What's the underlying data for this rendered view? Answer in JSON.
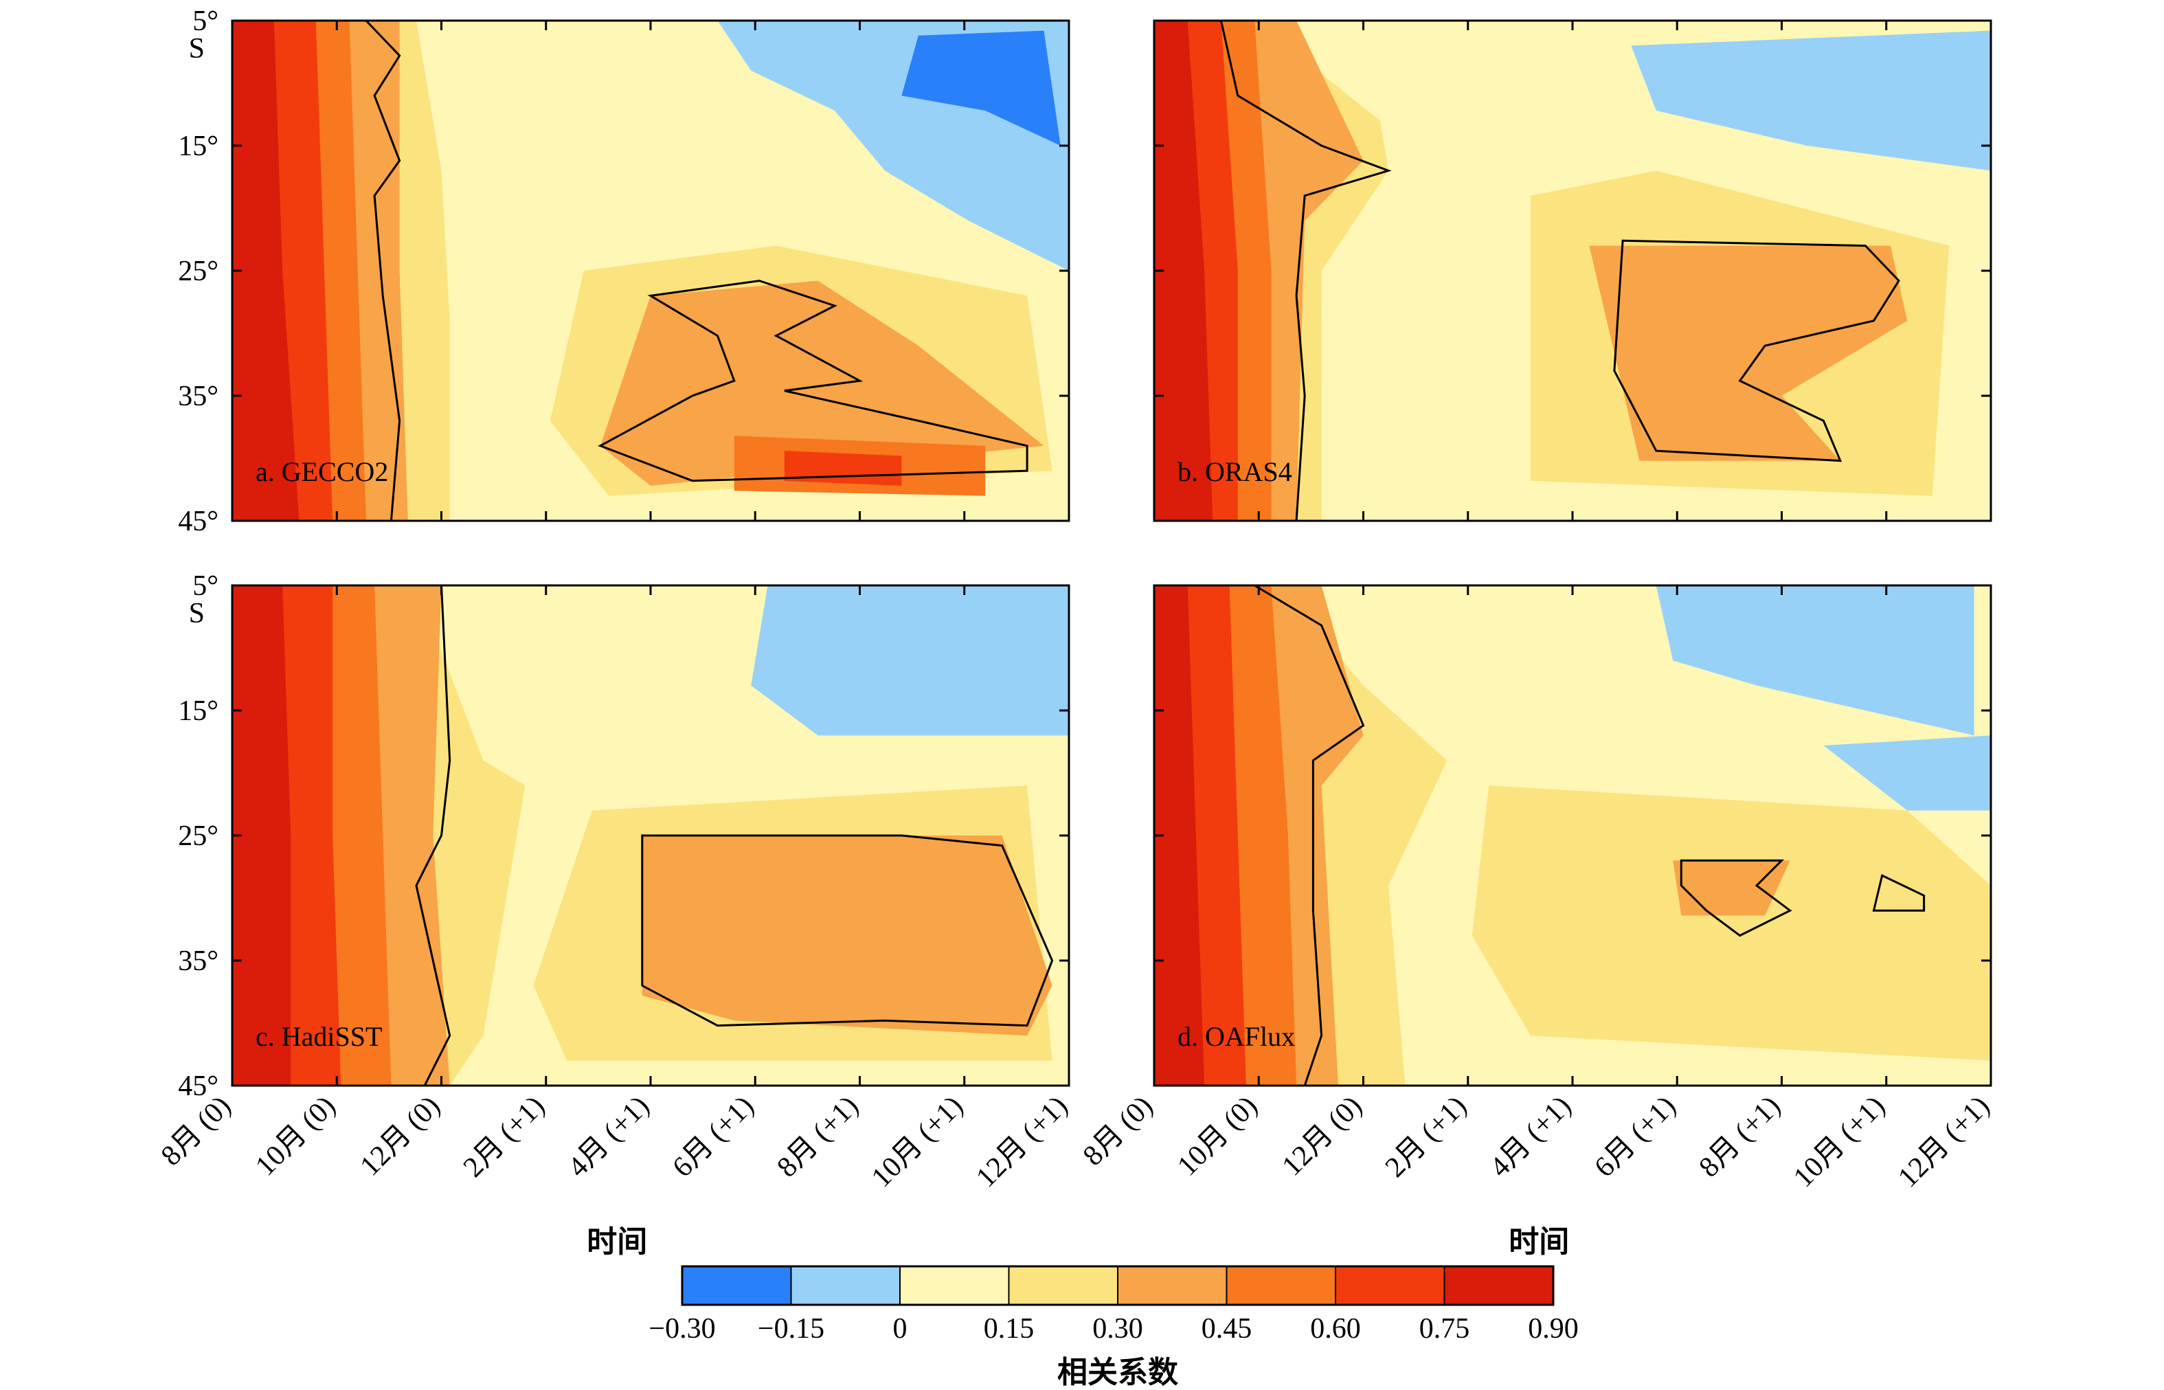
{
  "chart_data": {
    "type": "heatmap",
    "panels": [
      {
        "label": "a. GECCO2"
      },
      {
        "label": "b. ORAS4"
      },
      {
        "label": "c. HadiSST"
      },
      {
        "label": "d. OAFlux"
      }
    ],
    "x_ticks": [
      "8月 (0)",
      "10月 (0)",
      "12月 (0)",
      "2月 (+1)",
      "4月 (+1)",
      "6月 (+1)",
      "8月 (+1)",
      "10月 (+1)",
      "12月 (+1)"
    ],
    "y_ticks": [
      "5°",
      "15°",
      "25°",
      "35°",
      "45°"
    ],
    "y_unit": "S",
    "xlabel": "时间",
    "colorbar": {
      "label": "相关系数",
      "levels": [
        "−0.30",
        "−0.15",
        "0",
        "0.15",
        "0.30",
        "0.45",
        "0.60",
        "0.75",
        "0.90"
      ],
      "colors": [
        "#2a80f8",
        "#98d1f8",
        "#fef7b6",
        "#fbe37f",
        "#f8a448",
        "#f7781e",
        "#f23c0e",
        "#d91d0a"
      ]
    }
  }
}
